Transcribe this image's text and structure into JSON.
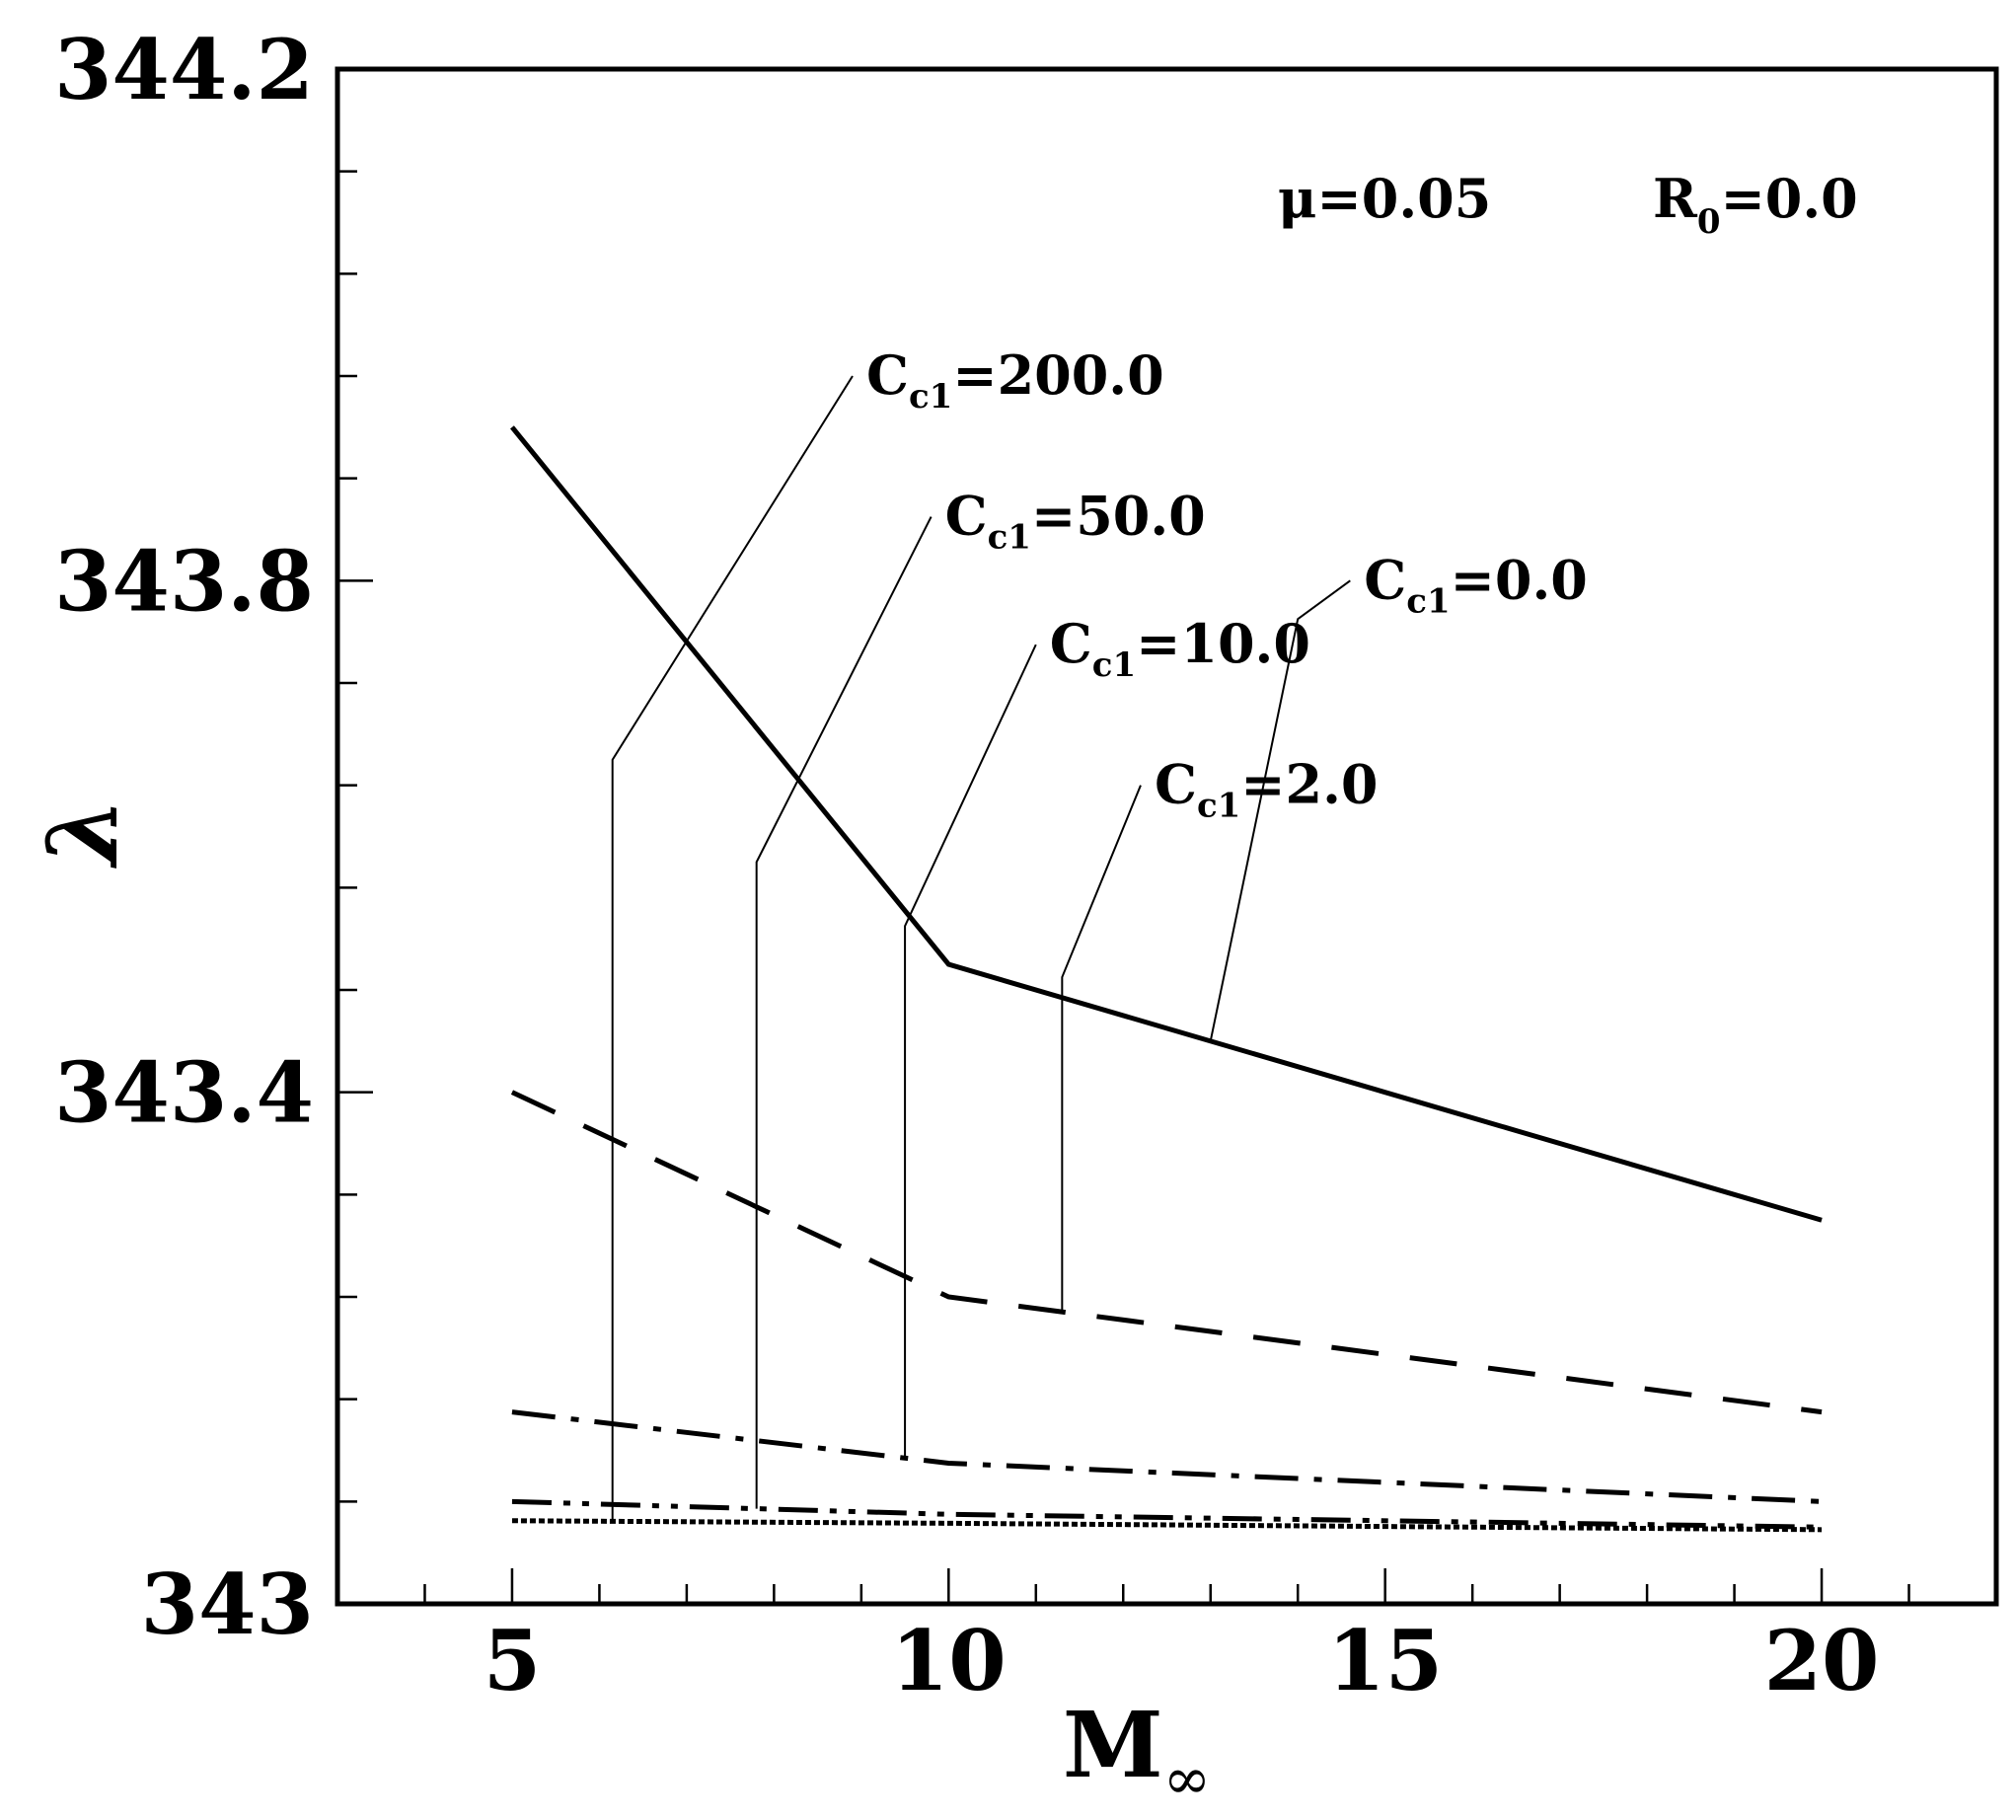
{
  "chart_data": {
    "type": "line",
    "title": "",
    "xlabel": {
      "main": "M",
      "sub": "∞"
    },
    "ylabel": "λ",
    "xlim": [
      3,
      22
    ],
    "ylim": [
      343.0,
      344.2
    ],
    "x_ticks": [
      "5",
      "10",
      "15",
      "20"
    ],
    "y_ticks": [
      "343",
      "343.4",
      "343.8",
      "344.2"
    ],
    "params": [
      {
        "id": "mu",
        "text": "μ=0.05"
      },
      {
        "id": "r0",
        "main": "R",
        "sub": "0",
        "rest": "=0.0"
      }
    ],
    "x": [
      5,
      10,
      20
    ],
    "series": [
      {
        "name": "C_c1=0.0",
        "label_main": "C",
        "label_sub": "c1",
        "label_rest": "=0.0",
        "style": "solid",
        "values": [
          343.92,
          343.5,
          343.3
        ]
      },
      {
        "name": "C_c1=2.0",
        "label_main": "C",
        "label_sub": "c1",
        "label_rest": "=2.0",
        "style": "dash",
        "values": [
          343.4,
          343.24,
          343.15
        ]
      },
      {
        "name": "C_c1=10.0",
        "label_main": "C",
        "label_sub": "c1",
        "label_rest": "=10.0",
        "style": "dashdot",
        "values": [
          343.15,
          343.11,
          343.08
        ]
      },
      {
        "name": "C_c1=50.0",
        "label_main": "C",
        "label_sub": "c1",
        "label_rest": "=50.0",
        "style": "dashdotdot",
        "values": [
          343.08,
          343.07,
          343.06
        ]
      },
      {
        "name": "C_c1=200.0",
        "label_main": "C",
        "label_sub": "c1",
        "label_rest": "=200.0",
        "style": "dotted",
        "values": [
          343.065,
          343.063,
          343.058
        ]
      }
    ]
  }
}
